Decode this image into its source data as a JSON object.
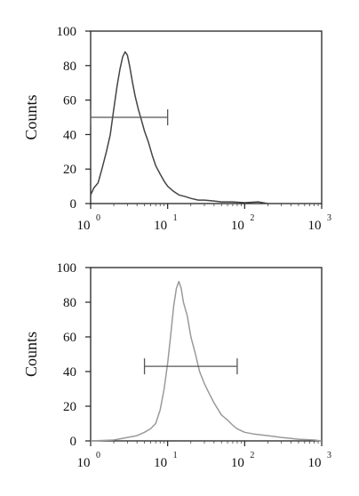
{
  "chart_data": [
    {
      "type": "line",
      "ylabel": "Counts",
      "xlabel": "",
      "xscale": "log",
      "xlim": [
        1,
        1000
      ],
      "ylim": [
        0,
        100
      ],
      "x_ticks": [
        {
          "base": "10",
          "exp": "0"
        },
        {
          "base": "10",
          "exp": "1"
        },
        {
          "base": "10",
          "exp": "2"
        },
        {
          "base": "10",
          "exp": "3"
        }
      ],
      "y_ticks": [
        "0",
        "20",
        "40",
        "60",
        "80",
        "100"
      ],
      "grid": false,
      "series": [
        {
          "color": "#444444",
          "x": [
            1,
            1.1,
            1.25,
            1.4,
            1.6,
            1.8,
            2.0,
            2.2,
            2.4,
            2.6,
            2.8,
            3.0,
            3.2,
            3.5,
            3.8,
            4.2,
            4.6,
            5.0,
            5.6,
            6.3,
            7.0,
            8.0,
            9.0,
            10,
            12,
            14,
            17,
            20,
            25,
            30,
            40,
            50,
            70,
            100,
            150,
            200
          ],
          "y": [
            5,
            9,
            12,
            20,
            30,
            40,
            55,
            68,
            78,
            85,
            88,
            86,
            80,
            70,
            62,
            54,
            48,
            42,
            36,
            28,
            22,
            17,
            13,
            10,
            7,
            5,
            4,
            3,
            2,
            2,
            1.5,
            1,
            1,
            0.5,
            1,
            0
          ]
        }
      ],
      "marker_range": {
        "x_start": 1,
        "x_end": 10,
        "y": 50
      }
    },
    {
      "type": "line",
      "ylabel": "Counts",
      "xlabel": "",
      "xscale": "log",
      "xlim": [
        1,
        1000
      ],
      "ylim": [
        0,
        100
      ],
      "x_ticks": [
        {
          "base": "10",
          "exp": "0"
        },
        {
          "base": "10",
          "exp": "1"
        },
        {
          "base": "10",
          "exp": "2"
        },
        {
          "base": "10",
          "exp": "3"
        }
      ],
      "y_ticks": [
        "0",
        "20",
        "40",
        "60",
        "80",
        "100"
      ],
      "grid": false,
      "series": [
        {
          "color": "#9a9a9a",
          "x": [
            1,
            2,
            3,
            4,
            5,
            6,
            7,
            8,
            9,
            10,
            11,
            12,
            13,
            14,
            15,
            16,
            18,
            20,
            23,
            26,
            30,
            35,
            40,
            50,
            60,
            70,
            80,
            100,
            130,
            200,
            300,
            500,
            800,
            1000
          ],
          "y": [
            0,
            0.5,
            2,
            3,
            5,
            7,
            10,
            18,
            30,
            45,
            62,
            78,
            88,
            92,
            88,
            80,
            72,
            60,
            50,
            40,
            33,
            27,
            22,
            15,
            12,
            9,
            7,
            5,
            4,
            3,
            2,
            1,
            0.5,
            0
          ]
        }
      ],
      "marker_range": {
        "x_start": 5,
        "x_end": 80,
        "y": 43
      }
    }
  ]
}
